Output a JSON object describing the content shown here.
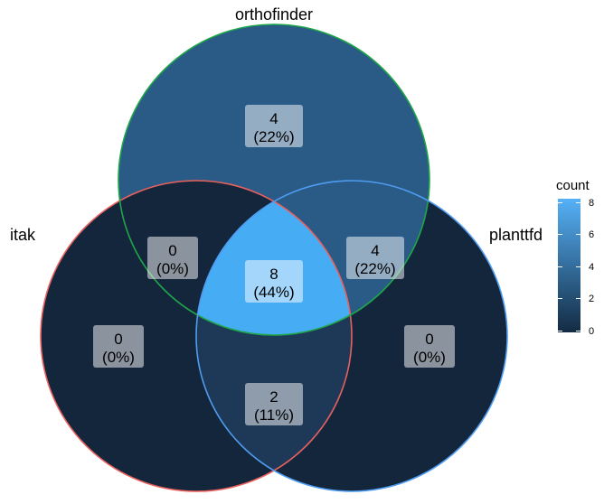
{
  "sets": [
    {
      "id": "itak",
      "label": "itak",
      "color": "#e8615f"
    },
    {
      "id": "orthofinder",
      "label": "orthofinder",
      "color": "#1fa54a"
    },
    {
      "id": "planttfd",
      "label": "planttfd",
      "color": "#4f9cf0"
    }
  ],
  "regions": [
    {
      "id": "orthofinder-only",
      "count": "4",
      "percent": "(22%)",
      "fill": "#2a5a86"
    },
    {
      "id": "itak-orthofinder",
      "count": "0",
      "percent": "(0%)",
      "fill": "#14263c"
    },
    {
      "id": "orthofinder-planttfd",
      "count": "4",
      "percent": "(22%)",
      "fill": "#2a5a86"
    },
    {
      "id": "all-three",
      "count": "8",
      "percent": "(44%)",
      "fill": "#46adf5"
    },
    {
      "id": "itak-only",
      "count": "0",
      "percent": "(0%)",
      "fill": "#14263c"
    },
    {
      "id": "planttfd-only",
      "count": "0",
      "percent": "(0%)",
      "fill": "#14263c"
    },
    {
      "id": "itak-planttfd",
      "count": "2",
      "percent": "(11%)",
      "fill": "#1d3957"
    }
  ],
  "legend": {
    "title": "count",
    "ticks": [
      "8",
      "6",
      "4",
      "2",
      "0"
    ],
    "color_low": "#132b43",
    "color_high": "#56b1f7"
  }
}
